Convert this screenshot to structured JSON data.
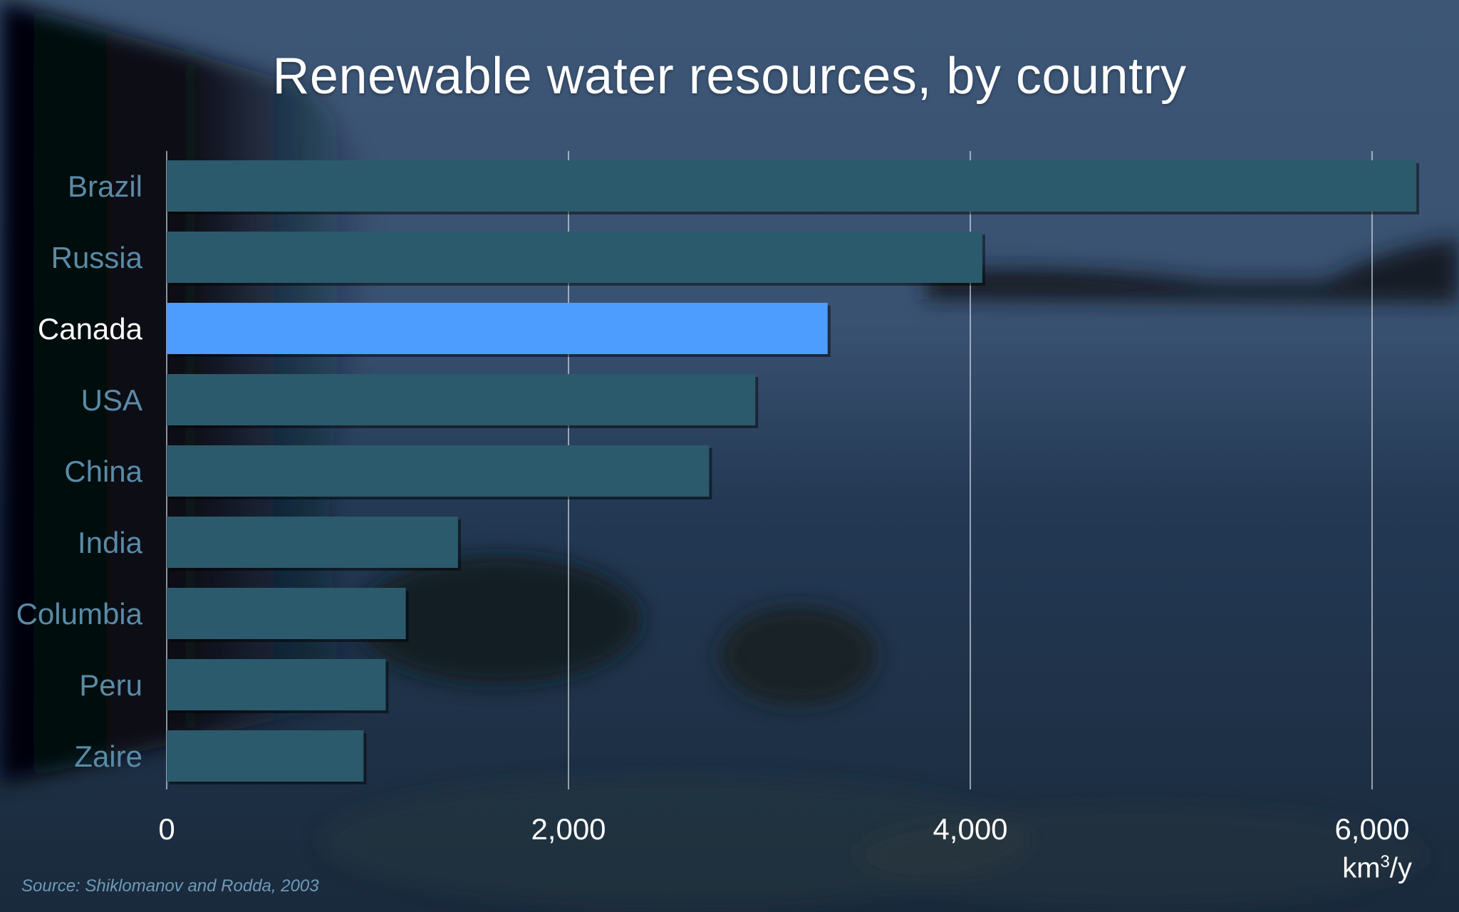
{
  "chart_data": {
    "type": "bar",
    "orientation": "horizontal",
    "title": "Renewable water resources, by country",
    "categories": [
      "Brazil",
      "Russia",
      "Canada",
      "USA",
      "China",
      "India",
      "Columbia",
      "Peru",
      "Zaire"
    ],
    "values": [
      6220,
      4060,
      3290,
      2930,
      2700,
      1450,
      1190,
      1090,
      980
    ],
    "highlight": "Canada",
    "xlim": [
      0,
      6000
    ],
    "xticks": [
      "0",
      "2,000",
      "4,000",
      "6,000"
    ],
    "xtick_values": [
      0,
      2000,
      4000,
      6000
    ],
    "unit_base": "km",
    "unit_sup": "3",
    "unit_tail": "/y",
    "grid": true,
    "source": "Source: Shiklomanov and Rodda, 2003",
    "colors": {
      "bar": "#2b5a6c",
      "highlight_bar": "#4d9cff",
      "label": "#5a8ba6",
      "highlight_label": "#ffffff",
      "grid": "#d9e2ea"
    }
  }
}
